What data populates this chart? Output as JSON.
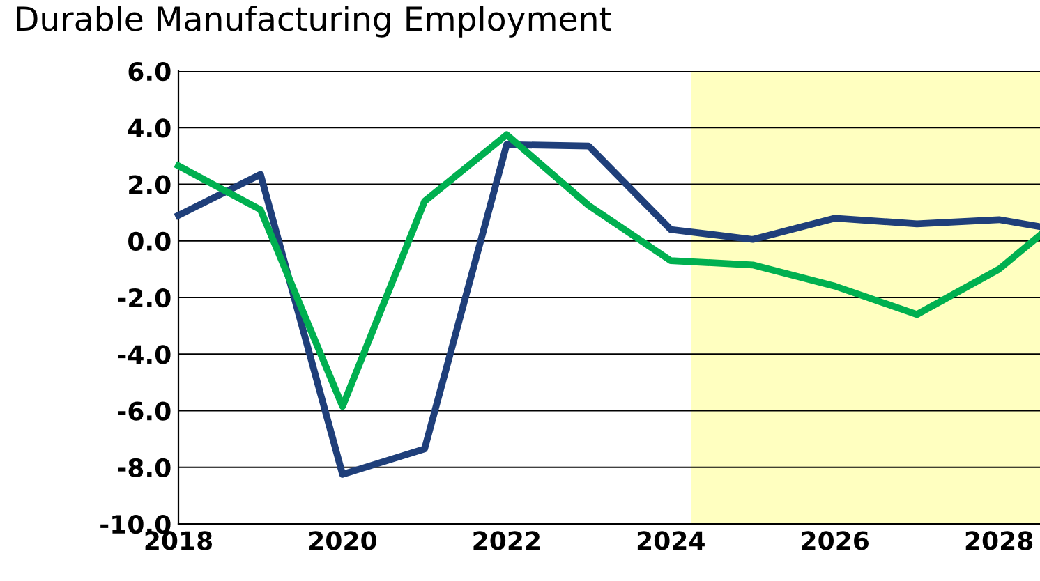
{
  "chart_data": {
    "type": "line",
    "title": "Durable Manufacturing Employment",
    "x": [
      2018,
      2019,
      2020,
      2021,
      2022,
      2023,
      2024,
      2025,
      2026,
      2027,
      2028,
      2028.5
    ],
    "series": [
      {
        "color": "#1f3f7a",
        "values": [
          0.9,
          2.35,
          -8.25,
          -7.35,
          3.4,
          3.35,
          0.4,
          0.05,
          0.8,
          0.6,
          0.75,
          0.5
        ]
      },
      {
        "color": "#00b050",
        "values": [
          2.65,
          1.1,
          -5.85,
          1.4,
          3.75,
          1.25,
          -0.7,
          -0.85,
          -1.6,
          -2.6,
          -1.0,
          0.2
        ]
      }
    ],
    "xlim": [
      2018,
      2028.5
    ],
    "xticks": [
      2018,
      2020,
      2022,
      2024,
      2026,
      2028
    ],
    "ylim": [
      -10,
      6
    ],
    "yticks": [
      {
        "value": -10,
        "label": "-10.0"
      },
      {
        "value": -8,
        "label": "-8.0"
      },
      {
        "value": -6,
        "label": "-6.0"
      },
      {
        "value": -4,
        "label": "-4.0"
      },
      {
        "value": -2,
        "label": "-2.0"
      },
      {
        "value": 0,
        "label": "0.0"
      },
      {
        "value": 2,
        "label": "2.0"
      },
      {
        "value": 4,
        "label": "4.0"
      },
      {
        "value": 6,
        "label": "6.0"
      }
    ],
    "bands": [
      {
        "axis": "x",
        "from": 2024.25,
        "to": 2028.5,
        "color": "#ffffc0"
      }
    ],
    "grid": "y",
    "legend": false,
    "marker": "none",
    "line_style": "solid"
  }
}
